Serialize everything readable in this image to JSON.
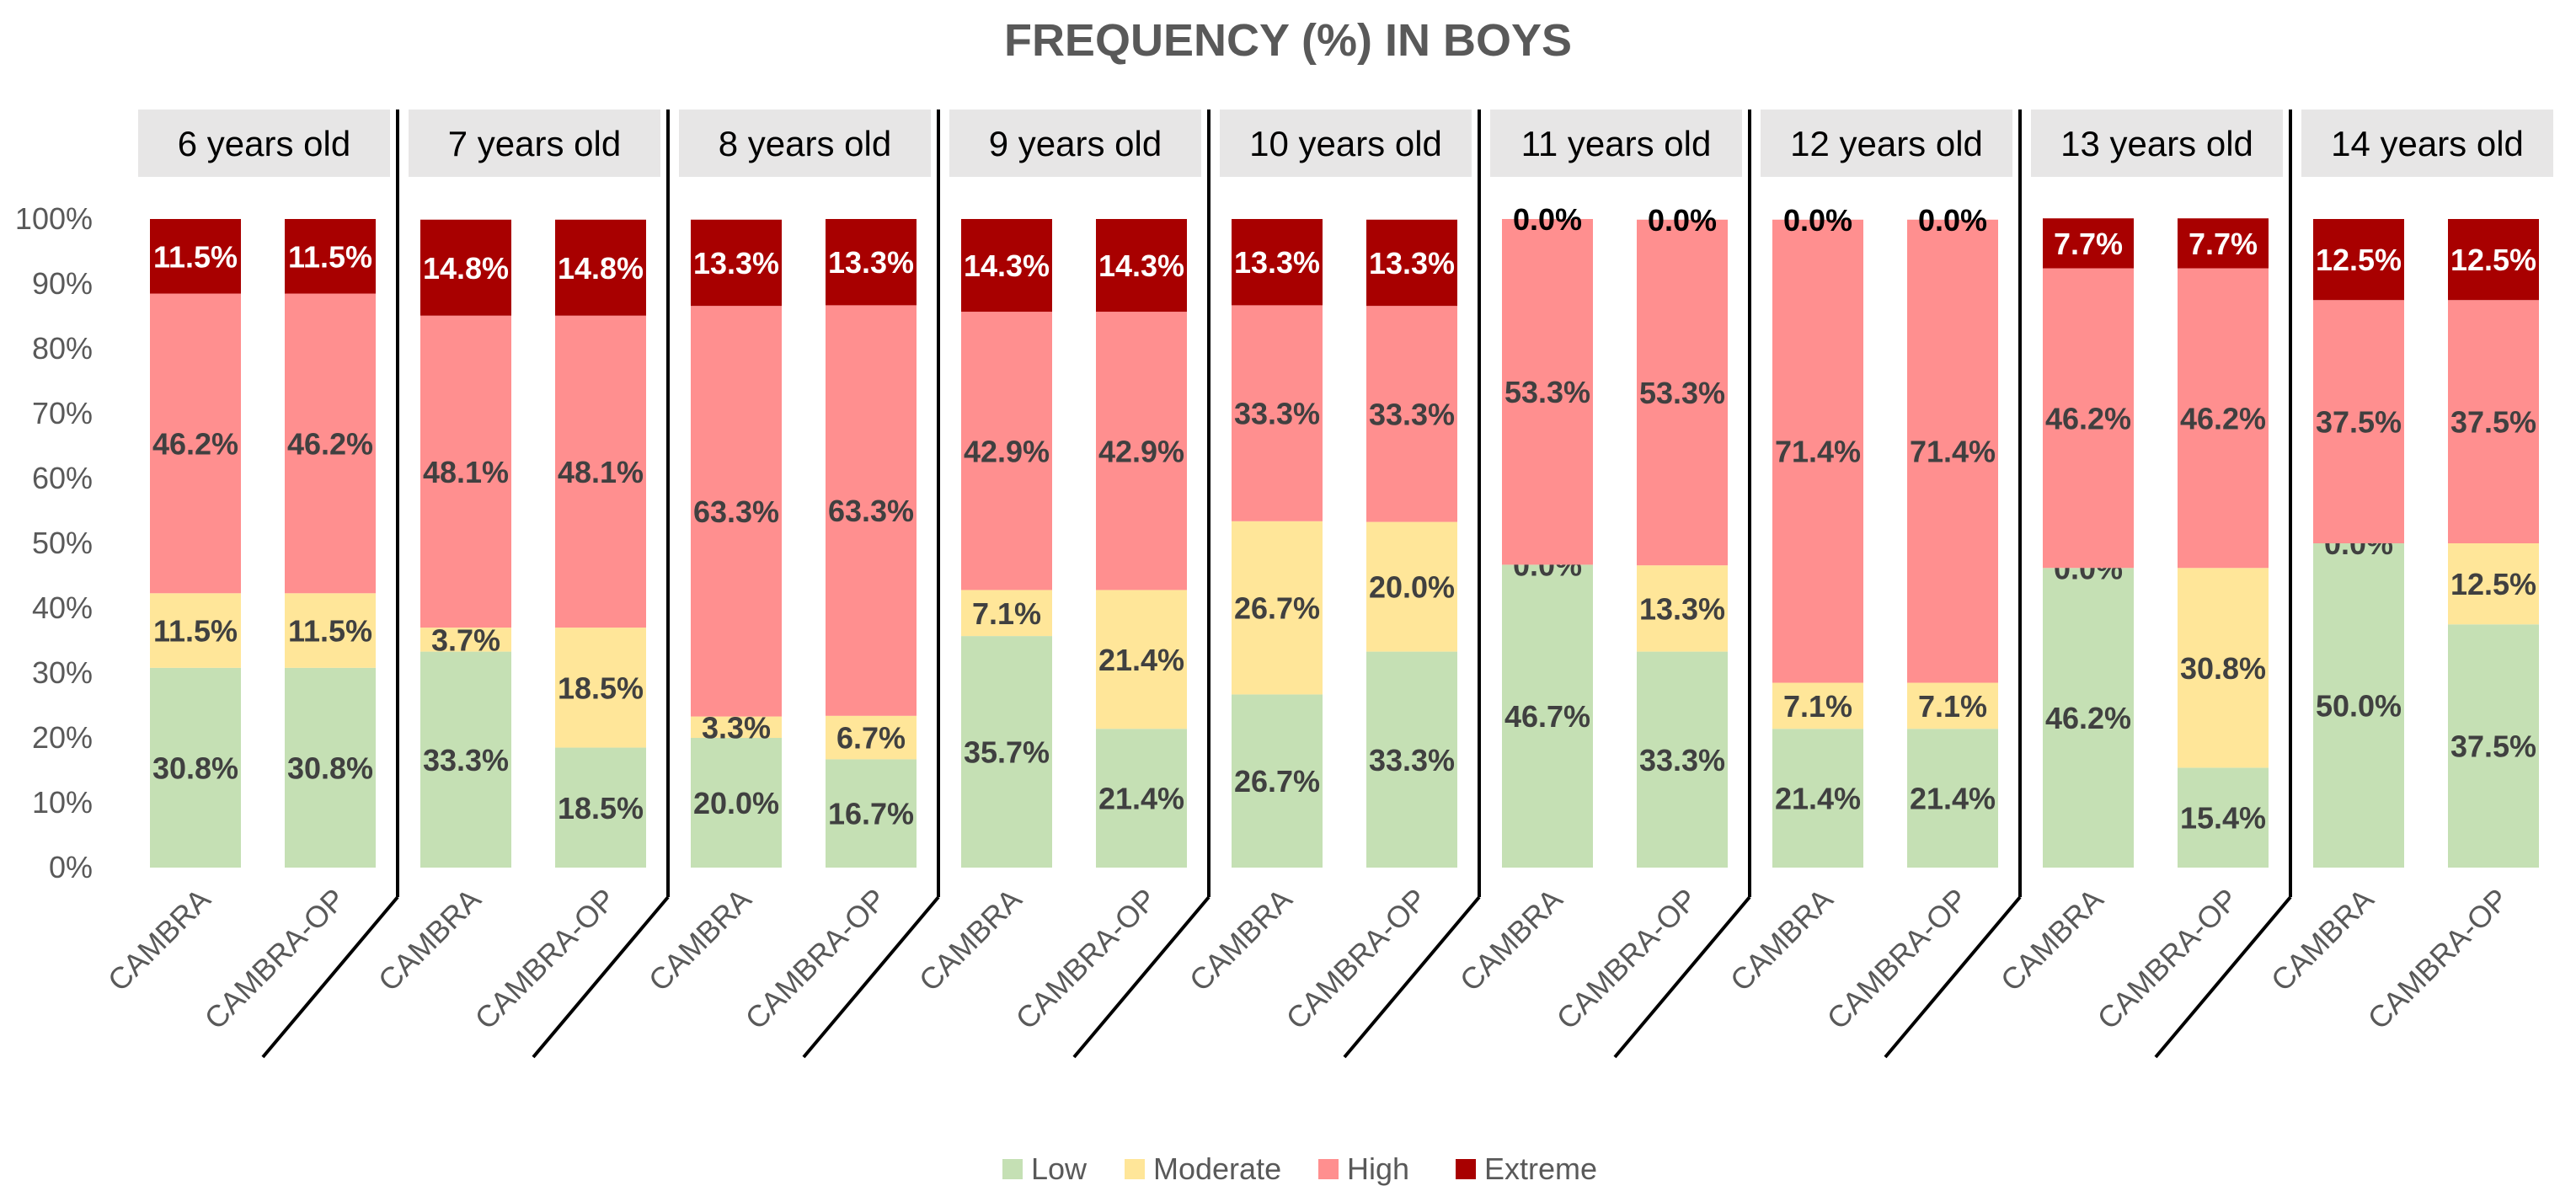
{
  "chart_data": {
    "type": "bar",
    "stacked": true,
    "title": "FREQUENCY (%) IN BOYS",
    "ylim": [
      0,
      100
    ],
    "y_ticks": [
      "0%",
      "10%",
      "20%",
      "30%",
      "40%",
      "50%",
      "60%",
      "70%",
      "80%",
      "90%",
      "100%"
    ],
    "legend": [
      "Low",
      "Moderate",
      "High",
      "Extreme"
    ],
    "legend_position": "bottom",
    "colors": {
      "Low": "#c5e0b4",
      "Moderate": "#ffe699",
      "High": "#ff8f8f",
      "Extreme": "#a80000"
    },
    "groups": [
      {
        "label": "6 years old",
        "bars": [
          {
            "category": "CAMBRA",
            "values": [
              30.8,
              11.5,
              46.2,
              11.5
            ],
            "labels": [
              "30.8%",
              "11.5%",
              "46.2%",
              "11.5%"
            ]
          },
          {
            "category": "CAMBRA-OP",
            "values": [
              30.8,
              11.5,
              46.2,
              11.5
            ],
            "labels": [
              "30.8%",
              "11.5%",
              "46.2%",
              "11.5%"
            ]
          }
        ]
      },
      {
        "label": "7 years old",
        "bars": [
          {
            "category": "CAMBRA",
            "values": [
              33.3,
              3.7,
              48.1,
              14.8
            ],
            "labels": [
              "33.3%",
              "3.7%",
              "48.1%",
              "14.8%"
            ]
          },
          {
            "category": "CAMBRA-OP",
            "values": [
              18.5,
              18.5,
              48.1,
              14.8
            ],
            "labels": [
              "18.5%",
              "18.5%",
              "48.1%",
              "14.8%"
            ]
          }
        ]
      },
      {
        "label": "8 years old",
        "bars": [
          {
            "category": "CAMBRA",
            "values": [
              20.0,
              3.3,
              63.3,
              13.3
            ],
            "labels": [
              "20.0%",
              "3.3%",
              "63.3%",
              "13.3%"
            ]
          },
          {
            "category": "CAMBRA-OP",
            "values": [
              16.7,
              6.7,
              63.3,
              13.3
            ],
            "labels": [
              "16.7%",
              "6.7%",
              "63.3%",
              "13.3%"
            ]
          }
        ]
      },
      {
        "label": "9 years old",
        "bars": [
          {
            "category": "CAMBRA",
            "values": [
              35.7,
              7.1,
              42.9,
              14.3
            ],
            "labels": [
              "35.7%",
              "7.1%",
              "42.9%",
              "14.3%"
            ]
          },
          {
            "category": "CAMBRA-OP",
            "values": [
              21.4,
              21.4,
              42.9,
              14.3
            ],
            "labels": [
              "21.4%",
              "21.4%",
              "42.9%",
              "14.3%"
            ]
          }
        ]
      },
      {
        "label": "10 years old",
        "bars": [
          {
            "category": "CAMBRA",
            "values": [
              26.7,
              26.7,
              33.3,
              13.3
            ],
            "labels": [
              "26.7%",
              "26.7%",
              "33.3%",
              "13.3%"
            ]
          },
          {
            "category": "CAMBRA-OP",
            "values": [
              33.3,
              20.0,
              33.3,
              13.3
            ],
            "labels": [
              "33.3%",
              "20.0%",
              "33.3%",
              "13.3%"
            ]
          }
        ]
      },
      {
        "label": "11 years old",
        "bars": [
          {
            "category": "CAMBRA",
            "values": [
              46.7,
              0.0,
              53.3,
              0.0
            ],
            "labels": [
              "46.7%",
              "0.0%",
              "53.3%",
              "0.0%"
            ]
          },
          {
            "category": "CAMBRA-OP",
            "values": [
              33.3,
              13.3,
              53.3,
              0.0
            ],
            "labels": [
              "33.3%",
              "13.3%",
              "53.3%",
              "0.0%"
            ]
          }
        ]
      },
      {
        "label": "12 years old",
        "bars": [
          {
            "category": "CAMBRA",
            "values": [
              21.4,
              7.1,
              71.4,
              0.0
            ],
            "labels": [
              "21.4%",
              "7.1%",
              "71.4%",
              "0.0%"
            ]
          },
          {
            "category": "CAMBRA-OP",
            "values": [
              21.4,
              7.1,
              71.4,
              0.0
            ],
            "labels": [
              "21.4%",
              "7.1%",
              "71.4%",
              "0.0%"
            ]
          }
        ]
      },
      {
        "label": "13 years old",
        "bars": [
          {
            "category": "CAMBRA",
            "values": [
              46.2,
              0.0,
              46.2,
              7.7
            ],
            "labels": [
              "46.2%",
              "0.0%",
              "46.2%",
              "7.7%"
            ]
          },
          {
            "category": "CAMBRA-OP",
            "values": [
              15.4,
              30.8,
              46.2,
              7.7
            ],
            "labels": [
              "15.4%",
              "30.8%",
              "46.2%",
              "7.7%"
            ]
          }
        ]
      },
      {
        "label": "14 years old",
        "bars": [
          {
            "category": "CAMBRA",
            "values": [
              50.0,
              0.0,
              37.5,
              12.5
            ],
            "labels": [
              "50.0%",
              "0.0%",
              "37.5%",
              "12.5%"
            ]
          },
          {
            "category": "CAMBRA-OP",
            "values": [
              37.5,
              12.5,
              37.5,
              12.5
            ],
            "labels": [
              "37.5%",
              "12.5%",
              "37.5%",
              "12.5%"
            ]
          }
        ]
      }
    ]
  }
}
